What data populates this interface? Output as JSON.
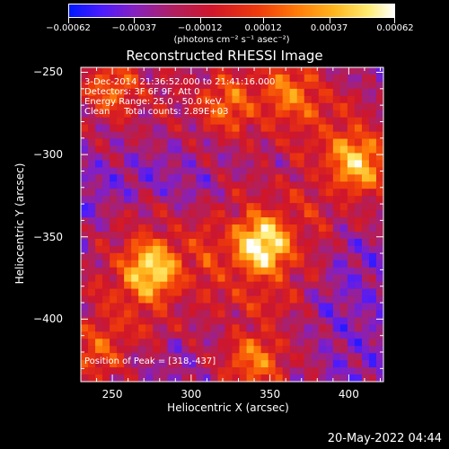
{
  "colorbar": {
    "tick_labels": [
      "-0.00062",
      "-0.00037",
      "-0.00012",
      "0.00012",
      "0.00037",
      "0.00062"
    ],
    "units": "(photons cm⁻² s⁻¹ asec⁻²)"
  },
  "chart_data": {
    "type": "heatmap",
    "title": "Reconstructed RHESSI Image",
    "xlabel": "Heliocentric X (arcsec)",
    "ylabel": "Heliocentric Y (arcsec)",
    "xlim": [
      230,
      422
    ],
    "ylim": [
      -438,
      -247
    ],
    "xticks": [
      "250",
      "300",
      "350",
      "400"
    ],
    "yticks": [
      "-250",
      "-300",
      "-350",
      "-400"
    ],
    "xtick_values": [
      250,
      300,
      350,
      400
    ],
    "ytick_values": [
      -250,
      -300,
      -350,
      -400
    ],
    "colorbar_range": [
      -0.00062,
      0.00062
    ],
    "sources": [
      {
        "x": 345,
        "y": -355,
        "intensity": 1.0
      },
      {
        "x": 275,
        "y": -370,
        "intensity": 0.9
      },
      {
        "x": 405,
        "y": -305,
        "intensity": 0.8
      },
      {
        "x": 250,
        "y": -260,
        "intensity": 0.55
      },
      {
        "x": 320,
        "y": -270,
        "intensity": 0.5
      },
      {
        "x": 365,
        "y": -262,
        "intensity": 0.55
      },
      {
        "x": 340,
        "y": -425,
        "intensity": 0.6
      },
      {
        "x": 240,
        "y": -420,
        "intensity": 0.5
      }
    ],
    "peak_position": [
      318,
      -437
    ]
  },
  "info": {
    "time_range": "3-Dec-2014 21:36:52.000 to 21:41:16.000",
    "detectors": "Detectors: 3F 6F 9F, Att 0",
    "energy": "Energy Range: 25.0 - 50.0 keV",
    "clean": "Clean     Total counts: 2.89E+03",
    "peak": "Position of Peak = [318,-437]"
  },
  "timestamp": "20-May-2022 04:44"
}
